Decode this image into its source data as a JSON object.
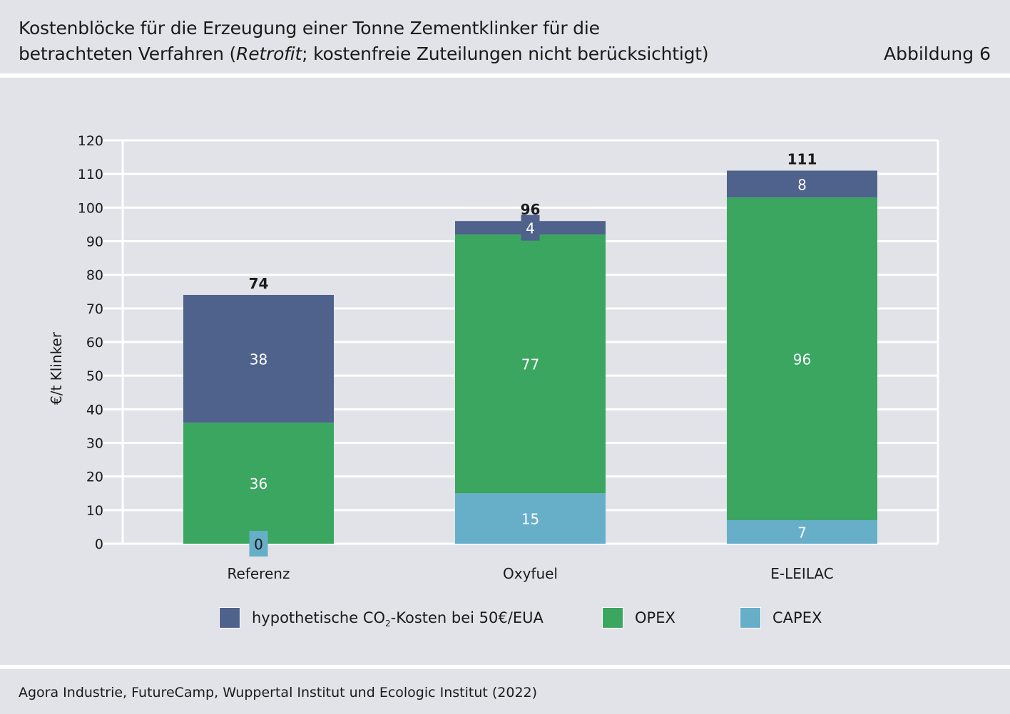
{
  "header": {
    "title_line1": "Kostenblöcke für die Erzeugung einer Tonne Zementklinker für die",
    "title_line2_pre": "betrachteten Verfahren (",
    "title_line2_italic": "Retrofit",
    "title_line2_post": "; kostenfreie Zuteilungen nicht berücksichtigt)",
    "figure_label": "Abbildung 6"
  },
  "footer": {
    "source": "Agora Industrie, FutureCamp, Wuppertal Institut und Ecologic Institut (2022)"
  },
  "legend": {
    "co2_pre": "hypothetische CO",
    "co2_sub": "2",
    "co2_post": "-Kosten bei 50€/EUA",
    "opex": "OPEX",
    "capex": "CAPEX"
  },
  "colors": {
    "co2": "#4e628c",
    "opex": "#3aa660",
    "capex": "#67aec9",
    "grid": "#ffffff",
    "background": "#e2e3e8"
  },
  "chart_data": {
    "type": "bar",
    "stacked": true,
    "categories": [
      "Referenz",
      "Oxyfuel",
      "E-LEILAC"
    ],
    "series": [
      {
        "name": "CAPEX",
        "color": "#67aec9",
        "values": [
          0,
          15,
          7
        ]
      },
      {
        "name": "OPEX",
        "color": "#3aa660",
        "values": [
          36,
          77,
          96
        ]
      },
      {
        "name": "hypothetische CO2-Kosten bei 50€/EUA",
        "color": "#4e628c",
        "values": [
          38,
          4,
          8
        ]
      }
    ],
    "segment_labels": [
      [
        "0",
        "36",
        "38"
      ],
      [
        "15",
        "77",
        "4"
      ],
      [
        "7",
        "96",
        "8"
      ]
    ],
    "totals": [
      74,
      96,
      111
    ],
    "total_labels": [
      "74",
      "96",
      "111"
    ],
    "ylabel": "€/t Klinker",
    "ylim": [
      0,
      120
    ],
    "yticks": [
      0,
      10,
      20,
      30,
      40,
      50,
      60,
      70,
      80,
      90,
      100,
      110,
      120
    ],
    "grid": true,
    "legend_position": "bottom"
  }
}
